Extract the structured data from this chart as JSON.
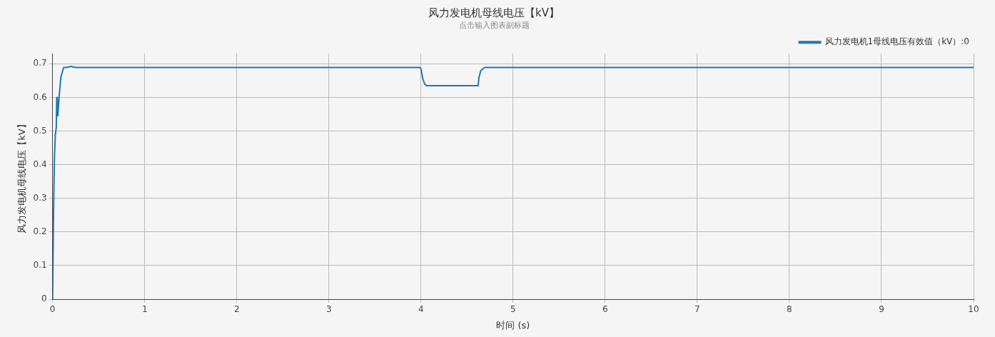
{
  "chart_data": {
    "type": "line",
    "title": "风力发电机母线电压【kV】",
    "subtitle": "点击输入图表副标题",
    "xlabel": "时间 (s)",
    "ylabel": "风力发电机母线电压【kV】",
    "x": [
      0,
      0.01,
      0.02,
      0.03,
      0.04,
      0.045,
      0.05,
      0.057,
      0.07,
      0.09,
      0.11,
      0.12,
      0.15,
      0.2,
      0.25,
      1,
      2,
      3,
      3.99,
      4.0,
      4.02,
      4.04,
      4.06,
      4.1,
      4.5,
      4.62,
      4.63,
      4.65,
      4.69,
      4.75,
      5,
      6,
      7,
      8,
      9,
      10
    ],
    "series": [
      {
        "name": "风力发电机1母线电压有效值（kV）:0",
        "color": "#1f77b4",
        "values": [
          0,
          0.25,
          0.42,
          0.49,
          0.51,
          0.6,
          0.6,
          0.545,
          0.6,
          0.66,
          0.68,
          0.689,
          0.689,
          0.692,
          0.689,
          0.689,
          0.689,
          0.689,
          0.689,
          0.685,
          0.655,
          0.64,
          0.635,
          0.635,
          0.635,
          0.635,
          0.66,
          0.68,
          0.689,
          0.689,
          0.689,
          0.689,
          0.689,
          0.689,
          0.689,
          0.689
        ]
      }
    ],
    "xlim": [
      0,
      10
    ],
    "xticks": [
      0,
      1,
      2,
      3,
      4,
      5,
      6,
      7,
      8,
      9,
      10
    ],
    "ylim": [
      0,
      0.73
    ],
    "yticks": [
      0,
      0.1,
      0.2,
      0.3,
      0.4,
      0.5,
      0.6,
      0.7
    ],
    "grid": true,
    "legend": "top right",
    "marker": "none",
    "line_style": "solid"
  }
}
